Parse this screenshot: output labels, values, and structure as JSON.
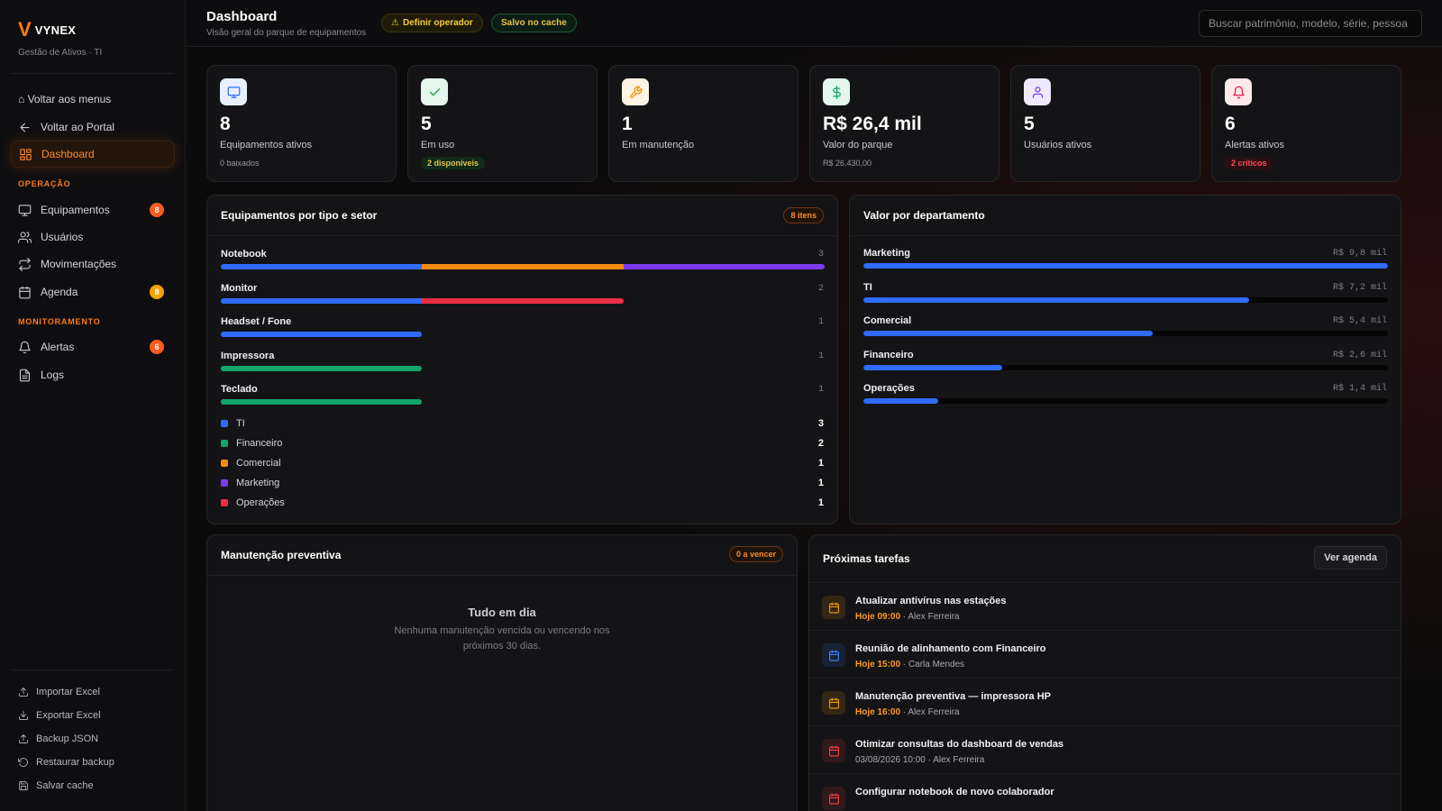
{
  "sidebar": {
    "brand_mark": "V",
    "brand_name": "VYNEX",
    "brand_sub": "Gestão de Ativos · TI",
    "back_menus": "⌂ Voltar aos menus",
    "back_portal": "Voltar ao Portal",
    "dashboard": "Dashboard",
    "section_operacao": "OPERAÇÃO",
    "section_monitoramento": "MONITORAMENTO",
    "items": [
      {
        "label": "Equipamentos",
        "icon": "monitor-icon",
        "badge": "8"
      },
      {
        "label": "Usuários",
        "icon": "users-icon",
        "badge": ""
      },
      {
        "label": "Movimentações",
        "icon": "transfer-icon",
        "badge": ""
      },
      {
        "label": "Agenda",
        "icon": "calendar-icon",
        "badge": "8"
      },
      {
        "label": "Alertas",
        "icon": "bell-icon",
        "badge": "6"
      },
      {
        "label": "Logs",
        "icon": "file-icon",
        "badge": ""
      }
    ],
    "footer": [
      {
        "label": "Importar Excel",
        "icon": "upload-icon"
      },
      {
        "label": "Exportar Excel",
        "icon": "download-icon"
      },
      {
        "label": "Backup JSON",
        "icon": "upload-icon"
      },
      {
        "label": "Restaurar backup",
        "icon": "restore-icon"
      },
      {
        "label": "Salvar cache",
        "icon": "save-icon"
      }
    ]
  },
  "header": {
    "title": "Dashboard",
    "subtitle": "Visão geral do parque de equipamentos",
    "pill_operator": "Definir operador",
    "pill_cache": "Salvo no cache",
    "search_placeholder": "Buscar patrimônio, modelo, série, pessoa"
  },
  "stats": [
    {
      "value": "8",
      "label": "Equipamentos ativos",
      "sub": "0 baixados",
      "chip": "",
      "icon": "monitor-icon",
      "color": "#3b82f6"
    },
    {
      "value": "5",
      "label": "Em uso",
      "sub": "",
      "chip": "2 disponíveis",
      "icon": "check-icon",
      "color": "#22c55e"
    },
    {
      "value": "1",
      "label": "Em manutenção",
      "sub": "",
      "chip": "",
      "icon": "wrench-icon",
      "color": "#f59e0b"
    },
    {
      "value": "R$ 26,4 mil",
      "label": "Valor do parque",
      "sub": "R$ 26.430,00",
      "chip": "",
      "icon": "dollar-icon",
      "color": "#10b981"
    },
    {
      "value": "5",
      "label": "Usuários ativos",
      "sub": "",
      "chip": "",
      "icon": "user-icon",
      "color": "#8b5cf6"
    },
    {
      "value": "6",
      "label": "Alertas ativos",
      "sub": "",
      "chip": "2 críticos",
      "icon": "bell-icon",
      "color": "#ef4444"
    }
  ],
  "types": {
    "title": "Equipamentos por tipo e setor",
    "chip": "8 itens",
    "max": 3,
    "rows": [
      {
        "label": "Notebook",
        "count": "3",
        "segments": [
          {
            "dept": "TI",
            "value": 1
          },
          {
            "dept": "Comercial",
            "value": 1
          },
          {
            "dept": "Marketing",
            "value": 1
          }
        ]
      },
      {
        "label": "Monitor",
        "count": "2",
        "segments": [
          {
            "dept": "TI",
            "value": 1
          },
          {
            "dept": "Operações",
            "value": 1
          }
        ]
      },
      {
        "label": "Headset / Fone",
        "count": "1",
        "segments": [
          {
            "dept": "TI",
            "value": 1
          }
        ]
      },
      {
        "label": "Impressora",
        "count": "1",
        "segments": [
          {
            "dept": "Financeiro",
            "value": 1
          }
        ]
      },
      {
        "label": "Teclado",
        "count": "1",
        "segments": [
          {
            "dept": "Financeiro",
            "value": 1
          }
        ]
      }
    ],
    "legend": [
      {
        "name": "TI",
        "value": "3",
        "color": "#2f6bff"
      },
      {
        "name": "Financeiro",
        "value": "2",
        "color": "#12a66a"
      },
      {
        "name": "Comercial",
        "value": "1",
        "color": "#f28c0f"
      },
      {
        "name": "Marketing",
        "value": "1",
        "color": "#7c3aed"
      },
      {
        "name": "Operações",
        "value": "1",
        "color": "#ef2d45"
      }
    ]
  },
  "departments": {
    "title": "Valor por departamento",
    "max": 9.8,
    "color": "#2f6bff",
    "rows": [
      {
        "label": "Marketing",
        "value_text": "R$ 9,8 mil",
        "value": 9.8
      },
      {
        "label": "TI",
        "value_text": "R$ 7,2 mil",
        "value": 7.2
      },
      {
        "label": "Comercial",
        "value_text": "R$ 5,4 mil",
        "value": 5.4
      },
      {
        "label": "Financeiro",
        "value_text": "R$ 2,6 mil",
        "value": 2.6
      },
      {
        "label": "Operações",
        "value_text": "R$ 1,4 mil",
        "value": 1.4
      }
    ]
  },
  "maintenance": {
    "title": "Manutenção preventiva",
    "chip": "0 a vencer",
    "empty_title": "Tudo em dia",
    "empty_desc": "Nenhuma manutenção vencida ou vencendo nos próximos 30 dias."
  },
  "tasks": {
    "title": "Próximas tarefas",
    "button": "Ver agenda",
    "items": [
      {
        "title": "Atualizar antivírus nas estações",
        "when": "Hoje 09:00",
        "who": " · Alex Ferreira",
        "color": "#f59e0b",
        "today": true
      },
      {
        "title": "Reunião de alinhamento com Financeiro",
        "when": "Hoje 15:00",
        "who": " · Carla Mendes",
        "color": "#3b82f6",
        "today": true
      },
      {
        "title": "Manutenção preventiva — impressora HP",
        "when": "Hoje 16:00",
        "who": " · Alex Ferreira",
        "color": "#f59e0b",
        "today": true
      },
      {
        "title": "Otimizar consultas do dashboard de vendas",
        "when": "03/08/2026 10:00",
        "who": " · Alex Ferreira",
        "color": "#ef4444",
        "today": false
      },
      {
        "title": "Configurar notebook de novo colaborador",
        "when": "",
        "who": "",
        "color": "#ef4444",
        "today": false
      }
    ]
  }
}
